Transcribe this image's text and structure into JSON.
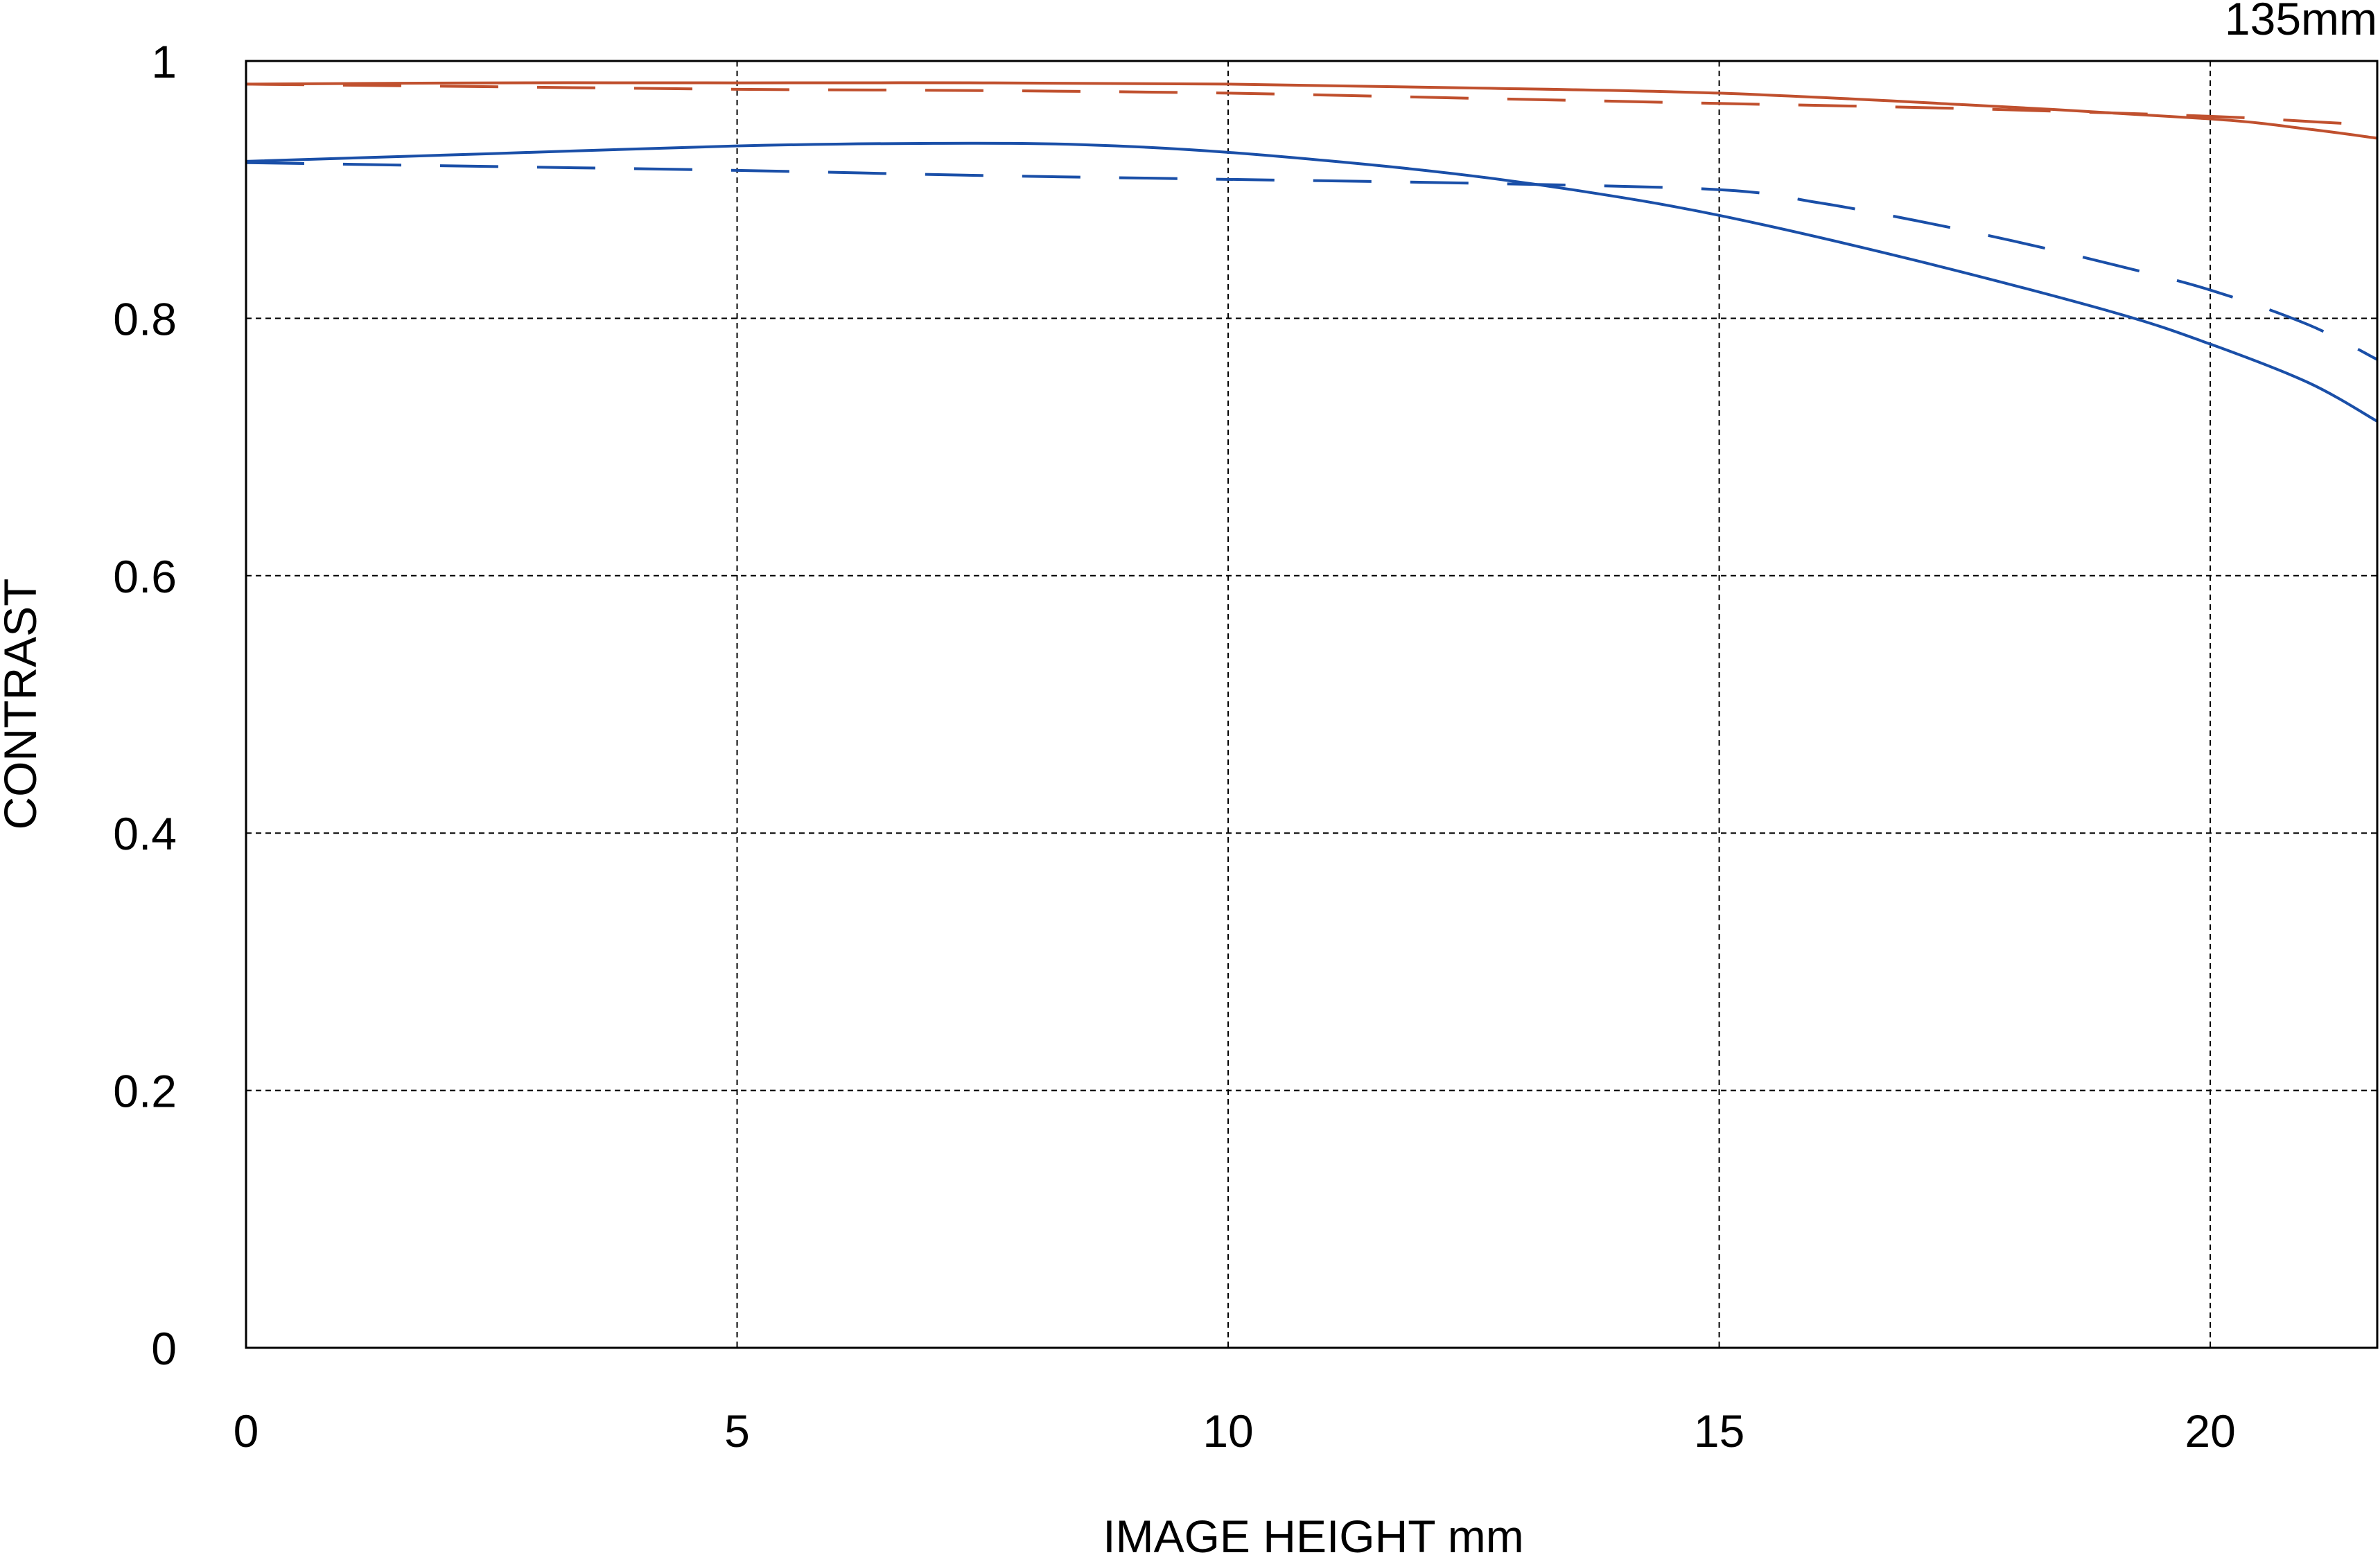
{
  "chart_data": {
    "type": "line",
    "title": "135mm",
    "xlabel": "IMAGE HEIGHT  mm",
    "ylabel": "CONTRAST",
    "xlim": [
      0,
      21.7
    ],
    "ylim": [
      0,
      1
    ],
    "xticks": [
      0,
      5,
      10,
      15,
      20
    ],
    "xtick_labels": [
      "0",
      "5",
      "10",
      "15",
      "20"
    ],
    "yticks": [
      0,
      0.2,
      0.4,
      0.6,
      0.8,
      1
    ],
    "ytick_labels": [
      "0",
      "0.2",
      "0.4",
      "0.6",
      "0.8",
      "1"
    ],
    "grid": true,
    "series": [
      {
        "color": "#c0502e",
        "style": "solid",
        "x": [
          0,
          2.5,
          5,
          7.5,
          10,
          12.5,
          15,
          17.5,
          20,
          21,
          21.7
        ],
        "y": [
          0.982,
          0.983,
          0.983,
          0.983,
          0.982,
          0.979,
          0.975,
          0.966,
          0.955,
          0.947,
          0.94
        ]
      },
      {
        "color": "#c0502e",
        "style": "dashed",
        "x": [
          0,
          2.5,
          5,
          7.5,
          10,
          12.5,
          15,
          17.5,
          20,
          21,
          21.7
        ],
        "y": [
          0.982,
          0.98,
          0.978,
          0.977,
          0.975,
          0.971,
          0.967,
          0.963,
          0.957,
          0.953,
          0.95
        ]
      },
      {
        "color": "#1a4fa8",
        "style": "solid",
        "x": [
          0,
          2.5,
          5,
          7,
          8.5,
          10,
          12,
          13.5,
          15,
          17,
          19,
          20,
          21,
          21.7
        ],
        "y": [
          0.922,
          0.928,
          0.934,
          0.936,
          0.935,
          0.929,
          0.915,
          0.9,
          0.88,
          0.845,
          0.805,
          0.78,
          0.75,
          0.72
        ]
      },
      {
        "color": "#1a4fa8",
        "style": "dashed",
        "x": [
          0,
          2.5,
          5,
          7.5,
          10,
          12.5,
          15,
          16,
          17,
          18,
          19,
          20,
          21,
          21.7
        ],
        "y": [
          0.921,
          0.918,
          0.915,
          0.911,
          0.908,
          0.905,
          0.9,
          0.89,
          0.876,
          0.86,
          0.842,
          0.822,
          0.795,
          0.768
        ]
      }
    ]
  }
}
